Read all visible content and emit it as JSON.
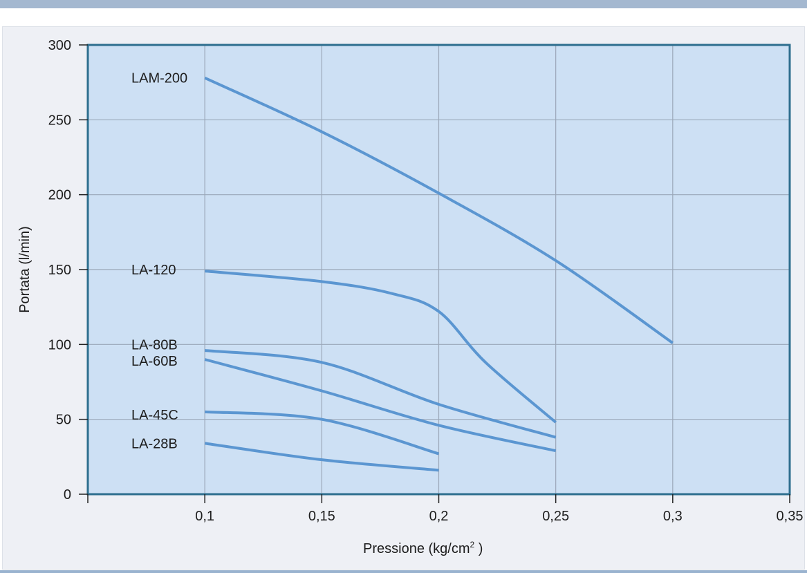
{
  "chart_data": {
    "type": "line",
    "title": "",
    "xlabel": "Pressione (kg/cm",
    "xlabel_sup": "2",
    "xlabel_end": " )",
    "ylabel": "Portata (l/min)",
    "xlim": [
      0.05,
      0.35
    ],
    "ylim": [
      0,
      300
    ],
    "x_ticks": [
      0.1,
      0.15,
      0.2,
      0.25,
      0.3,
      0.35
    ],
    "x_tick_labels": [
      "0,1",
      "0,15",
      "0,2",
      "0,25",
      "0,3",
      "0,35"
    ],
    "y_ticks": [
      0,
      50,
      100,
      150,
      200,
      250,
      300
    ],
    "y_tick_labels": [
      "0",
      "50",
      "100",
      "150",
      "200",
      "250",
      "300"
    ],
    "grid": true,
    "colors": {
      "plot_bg": "#cde0f4",
      "grid": "#9aa7b8",
      "frame": "#2d6e8e",
      "line": "#5b96d1"
    },
    "series": [
      {
        "name": "LAM-200",
        "x": [
          0.1,
          0.15,
          0.2,
          0.25,
          0.3
        ],
        "y": [
          278,
          242,
          201,
          156,
          101
        ]
      },
      {
        "name": "LA-120",
        "x": [
          0.1,
          0.15,
          0.18,
          0.2,
          0.22,
          0.25
        ],
        "y": [
          149,
          142,
          134,
          122,
          88,
          48
        ]
      },
      {
        "name": "LA-80B",
        "x": [
          0.1,
          0.15,
          0.2,
          0.25
        ],
        "y": [
          96,
          88,
          60,
          38
        ]
      },
      {
        "name": "LA-60B",
        "x": [
          0.1,
          0.15,
          0.2,
          0.25
        ],
        "y": [
          90,
          69,
          46,
          29
        ]
      },
      {
        "name": "LA-45C",
        "x": [
          0.1,
          0.15,
          0.2
        ],
        "y": [
          55,
          50,
          27
        ]
      },
      {
        "name": "LA-28B",
        "x": [
          0.1,
          0.15,
          0.2
        ],
        "y": [
          34,
          23,
          16
        ]
      }
    ],
    "series_label_values": [
      278,
      150,
      100,
      89,
      53,
      34
    ]
  }
}
